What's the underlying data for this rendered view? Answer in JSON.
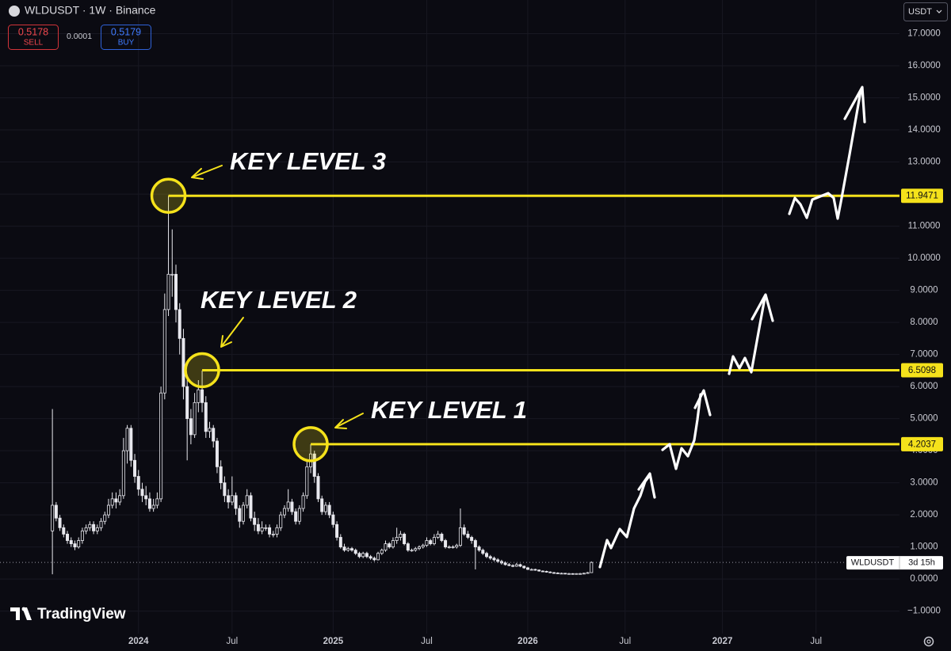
{
  "chart_data": {
    "type": "candlestick",
    "title": "WLDUSDT · 1W · Binance",
    "currency": "USDT",
    "sell": {
      "price": 0.5178,
      "label": "SELL"
    },
    "spread": 0.0001,
    "buy": {
      "price": 0.5179,
      "label": "BUY"
    },
    "last_price": {
      "value": 0.5178,
      "symbol": "WLDUSDT",
      "countdown": "3d 15h"
    },
    "brand": "TradingView",
    "color": "#e8e8ee",
    "level_color": "#f5e21b",
    "grid": true,
    "ylim": [
      -1.7,
      18.05
    ],
    "yticks": [
      {
        "value": -1,
        "label": "−1.0000"
      },
      {
        "value": 0,
        "label": "0.0000"
      },
      {
        "value": 1,
        "label": "1.0000"
      },
      {
        "value": 2,
        "label": "2.0000"
      },
      {
        "value": 3,
        "label": "3.0000"
      },
      {
        "value": 4,
        "label": "4.0000"
      },
      {
        "value": 5,
        "label": "5.0000"
      },
      {
        "value": 6,
        "label": "6.0000"
      },
      {
        "value": 7,
        "label": "7.0000"
      },
      {
        "value": 8,
        "label": "8.0000"
      },
      {
        "value": 9,
        "label": "9.0000"
      },
      {
        "value": 10,
        "label": "10.0000"
      },
      {
        "value": 11,
        "label": "11.0000"
      },
      {
        "value": 12,
        "label": "12.0000"
      },
      {
        "value": 13,
        "label": "13.0000"
      },
      {
        "value": 14,
        "label": "14.0000"
      },
      {
        "value": 15,
        "label": "15.0000"
      },
      {
        "value": 16,
        "label": "16.0000"
      },
      {
        "value": 17,
        "label": "17.0000"
      }
    ],
    "xlim": [
      -14,
      226.3
    ],
    "xticks": [
      {
        "value": 23,
        "label": "2024"
      },
      {
        "value": 48,
        "label": "Jul"
      },
      {
        "value": 75,
        "label": "2025"
      },
      {
        "value": 100,
        "label": "Jul"
      },
      {
        "value": 127,
        "label": "2026"
      },
      {
        "value": 153,
        "label": "Jul"
      },
      {
        "value": 179,
        "label": "2027"
      },
      {
        "value": 204,
        "label": "Jul"
      }
    ],
    "key_levels": [
      {
        "name": "KEY LEVEL 1",
        "value": 4.2037
      },
      {
        "name": "KEY LEVEL 2",
        "value": 6.5098
      },
      {
        "name": "KEY LEVEL 3",
        "value": 11.9471
      }
    ],
    "candles": [
      [
        1.5,
        5.3,
        0.15,
        2.3
      ],
      [
        2.3,
        2.4,
        1.8,
        1.9
      ],
      [
        1.9,
        2.0,
        1.5,
        1.6
      ],
      [
        1.6,
        1.7,
        1.3,
        1.4
      ],
      [
        1.4,
        1.5,
        1.1,
        1.2
      ],
      [
        1.2,
        1.3,
        1.0,
        1.1
      ],
      [
        1.1,
        1.2,
        0.9,
        1.0
      ],
      [
        1.0,
        1.3,
        0.95,
        1.2
      ],
      [
        1.2,
        1.6,
        1.1,
        1.5
      ],
      [
        1.5,
        1.7,
        1.4,
        1.6
      ],
      [
        1.6,
        1.8,
        1.5,
        1.7
      ],
      [
        1.7,
        1.8,
        1.4,
        1.5
      ],
      [
        1.5,
        1.7,
        1.4,
        1.6
      ],
      [
        1.6,
        1.9,
        1.5,
        1.8
      ],
      [
        1.8,
        2.1,
        1.7,
        2.0
      ],
      [
        2.0,
        2.5,
        1.9,
        2.3
      ],
      [
        2.3,
        2.7,
        2.2,
        2.5
      ],
      [
        2.5,
        2.7,
        2.2,
        2.4
      ],
      [
        2.4,
        2.8,
        2.3,
        2.6
      ],
      [
        2.6,
        4.4,
        2.5,
        4.0
      ],
      [
        4.0,
        4.8,
        3.6,
        4.7
      ],
      [
        4.7,
        4.8,
        3.5,
        3.7
      ],
      [
        3.7,
        3.9,
        3.0,
        3.2
      ],
      [
        3.2,
        3.4,
        2.6,
        2.8
      ],
      [
        2.8,
        3.0,
        2.4,
        2.6
      ],
      [
        2.6,
        2.9,
        2.3,
        2.5
      ],
      [
        2.5,
        2.7,
        2.1,
        2.2
      ],
      [
        2.2,
        2.5,
        2.1,
        2.3
      ],
      [
        2.3,
        2.7,
        2.2,
        2.5
      ],
      [
        2.5,
        6.0,
        2.4,
        5.8
      ],
      [
        5.8,
        8.9,
        5.6,
        8.4
      ],
      [
        8.4,
        11.95,
        8.2,
        9.5
      ],
      [
        9.5,
        10.9,
        8.8,
        9.5
      ],
      [
        9.5,
        9.8,
        8.0,
        8.4
      ],
      [
        8.4,
        8.6,
        7.0,
        7.5
      ],
      [
        7.5,
        7.8,
        5.6,
        6.0
      ],
      [
        6.0,
        6.3,
        3.7,
        5.0
      ],
      [
        5.0,
        5.3,
        4.2,
        4.5
      ],
      [
        4.5,
        5.8,
        4.4,
        5.5
      ],
      [
        5.5,
        6.2,
        5.2,
        5.9
      ],
      [
        5.9,
        6.5,
        5.2,
        5.5
      ],
      [
        5.5,
        5.7,
        4.4,
        4.6
      ],
      [
        4.6,
        4.9,
        4.4,
        4.7
      ],
      [
        4.7,
        4.8,
        4.1,
        4.3
      ],
      [
        4.3,
        4.4,
        3.3,
        3.5
      ],
      [
        3.5,
        3.7,
        2.8,
        3.0
      ],
      [
        3.0,
        3.2,
        2.4,
        2.6
      ],
      [
        2.6,
        2.8,
        2.2,
        2.4
      ],
      [
        2.4,
        3.2,
        2.3,
        2.6
      ],
      [
        2.6,
        2.7,
        2.0,
        2.2
      ],
      [
        2.2,
        2.3,
        1.6,
        1.8
      ],
      [
        1.8,
        2.4,
        1.7,
        2.3
      ],
      [
        2.3,
        2.8,
        2.2,
        2.6
      ],
      [
        2.6,
        2.7,
        1.8,
        1.9
      ],
      [
        1.9,
        2.1,
        1.5,
        1.7
      ],
      [
        1.7,
        1.9,
        1.4,
        1.5
      ],
      [
        1.5,
        1.8,
        1.4,
        1.6
      ],
      [
        1.6,
        1.7,
        1.5,
        1.6
      ],
      [
        1.6,
        1.7,
        1.3,
        1.4
      ],
      [
        1.4,
        1.5,
        1.3,
        1.4
      ],
      [
        1.4,
        1.7,
        1.3,
        1.6
      ],
      [
        1.6,
        2.1,
        1.5,
        2.0
      ],
      [
        2.0,
        2.3,
        1.9,
        2.2
      ],
      [
        2.2,
        2.8,
        2.1,
        2.4
      ],
      [
        2.4,
        2.5,
        2.0,
        2.1
      ],
      [
        2.1,
        2.2,
        1.7,
        1.8
      ],
      [
        1.8,
        2.3,
        1.7,
        2.2
      ],
      [
        2.2,
        2.7,
        2.1,
        2.6
      ],
      [
        2.6,
        3.7,
        2.5,
        3.5
      ],
      [
        3.5,
        4.2,
        3.3,
        3.9
      ],
      [
        3.9,
        4.0,
        3.0,
        3.2
      ],
      [
        3.2,
        3.3,
        2.4,
        2.5
      ],
      [
        2.5,
        2.6,
        2.0,
        2.1
      ],
      [
        2.1,
        2.4,
        2.0,
        2.3
      ],
      [
        2.3,
        2.4,
        1.9,
        2.0
      ],
      [
        2.0,
        2.1,
        1.6,
        1.7
      ],
      [
        1.7,
        1.8,
        1.2,
        1.3
      ],
      [
        1.3,
        1.4,
        0.95,
        1.0
      ],
      [
        1.0,
        1.1,
        0.85,
        0.9
      ],
      [
        0.9,
        1.0,
        0.85,
        0.95
      ],
      [
        0.95,
        1.0,
        0.85,
        0.9
      ],
      [
        0.9,
        0.95,
        0.75,
        0.8
      ],
      [
        0.8,
        0.85,
        0.65,
        0.7
      ],
      [
        0.7,
        0.85,
        0.65,
        0.8
      ],
      [
        0.8,
        0.85,
        0.65,
        0.7
      ],
      [
        0.7,
        0.75,
        0.6,
        0.65
      ],
      [
        0.65,
        0.7,
        0.55,
        0.6
      ],
      [
        0.6,
        0.85,
        0.58,
        0.8
      ],
      [
        0.8,
        0.95,
        0.75,
        0.9
      ],
      [
        0.9,
        1.2,
        0.85,
        1.1
      ],
      [
        1.1,
        1.15,
        0.95,
        1.0
      ],
      [
        1.0,
        1.3,
        0.95,
        1.2
      ],
      [
        1.2,
        1.6,
        1.1,
        1.3
      ],
      [
        1.3,
        1.5,
        1.2,
        1.4
      ],
      [
        1.4,
        1.45,
        1.05,
        1.1
      ],
      [
        1.1,
        1.15,
        0.85,
        0.9
      ],
      [
        0.9,
        0.95,
        0.85,
        0.9
      ],
      [
        0.9,
        1.0,
        0.85,
        0.95
      ],
      [
        0.95,
        1.05,
        0.9,
        1.0
      ],
      [
        1.0,
        1.1,
        0.95,
        1.05
      ],
      [
        1.05,
        1.3,
        1.0,
        1.2
      ],
      [
        1.2,
        1.25,
        1.05,
        1.1
      ],
      [
        1.1,
        1.4,
        1.05,
        1.3
      ],
      [
        1.3,
        1.5,
        1.25,
        1.4
      ],
      [
        1.4,
        1.45,
        1.15,
        1.2
      ],
      [
        1.2,
        1.25,
        0.95,
        1.0
      ],
      [
        1.0,
        1.05,
        0.95,
        1.0
      ],
      [
        1.0,
        1.05,
        0.95,
        1.0
      ],
      [
        1.0,
        1.1,
        0.95,
        1.05
      ],
      [
        1.05,
        2.2,
        1.0,
        1.6
      ],
      [
        1.6,
        1.7,
        1.35,
        1.4
      ],
      [
        1.4,
        1.5,
        1.25,
        1.3
      ],
      [
        1.3,
        1.35,
        1.1,
        1.2
      ],
      [
        1.2,
        1.25,
        0.3,
        1.0
      ],
      [
        1.0,
        1.05,
        0.85,
        0.9
      ],
      [
        0.9,
        0.95,
        0.75,
        0.8
      ],
      [
        0.8,
        0.85,
        0.65,
        0.7
      ],
      [
        0.7,
        0.75,
        0.6,
        0.65
      ],
      [
        0.65,
        0.7,
        0.55,
        0.6
      ],
      [
        0.6,
        0.65,
        0.5,
        0.55
      ],
      [
        0.55,
        0.6,
        0.45,
        0.5
      ],
      [
        0.5,
        0.55,
        0.42,
        0.45
      ],
      [
        0.45,
        0.5,
        0.4,
        0.42
      ],
      [
        0.42,
        0.46,
        0.37,
        0.4
      ],
      [
        0.4,
        0.5,
        0.38,
        0.45
      ],
      [
        0.45,
        0.48,
        0.37,
        0.4
      ],
      [
        0.4,
        0.42,
        0.32,
        0.35
      ],
      [
        0.35,
        0.38,
        0.28,
        0.3
      ],
      [
        0.3,
        0.33,
        0.27,
        0.3
      ],
      [
        0.3,
        0.32,
        0.26,
        0.28
      ],
      [
        0.28,
        0.3,
        0.23,
        0.25
      ],
      [
        0.25,
        0.27,
        0.22,
        0.24
      ],
      [
        0.24,
        0.26,
        0.2,
        0.22
      ],
      [
        0.22,
        0.24,
        0.19,
        0.2
      ],
      [
        0.2,
        0.22,
        0.18,
        0.19
      ],
      [
        0.19,
        0.21,
        0.17,
        0.18
      ],
      [
        0.18,
        0.2,
        0.17,
        0.18
      ],
      [
        0.18,
        0.19,
        0.16,
        0.17
      ],
      [
        0.17,
        0.19,
        0.16,
        0.17
      ],
      [
        0.17,
        0.18,
        0.15,
        0.16
      ],
      [
        0.16,
        0.18,
        0.15,
        0.17
      ],
      [
        0.17,
        0.19,
        0.16,
        0.17
      ],
      [
        0.17,
        0.2,
        0.16,
        0.18
      ],
      [
        0.18,
        0.22,
        0.17,
        0.2
      ],
      [
        0.2,
        0.55,
        0.19,
        0.5178
      ]
    ]
  }
}
